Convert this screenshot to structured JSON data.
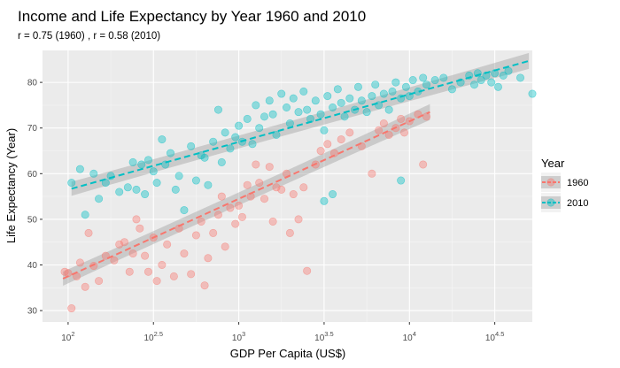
{
  "chart_data": {
    "type": "scatter",
    "title": "Income and Life Expectancy by Year 1960 and 2010",
    "subtitle": "r =  0.75 (1960) , r =  0.58 (2010)",
    "xlabel": "GDP Per Capita (US$)",
    "ylabel": "Life Expectancy (Year)",
    "x_scale": "log10",
    "x_log10_range": [
      1.85,
      4.72
    ],
    "ylim": [
      27.5,
      87
    ],
    "x_ticks": [
      {
        "log10": 2.0,
        "base": "10",
        "exp": "2"
      },
      {
        "log10": 2.5,
        "base": "10",
        "exp": "2.5"
      },
      {
        "log10": 3.0,
        "base": "10",
        "exp": "3"
      },
      {
        "log10": 3.5,
        "base": "10",
        "exp": "3.5"
      },
      {
        "log10": 4.0,
        "base": "10",
        "exp": "4"
      },
      {
        "log10": 4.5,
        "base": "10",
        "exp": "4.5"
      }
    ],
    "y_ticks": [
      30,
      40,
      50,
      60,
      70,
      80
    ],
    "grid": true,
    "legend": {
      "title": "Year",
      "position": "right"
    },
    "series": [
      {
        "name": "1960",
        "color": "#F8766D",
        "fit": {
          "log10_x": [
            1.97,
            4.12
          ],
          "y": [
            37.0,
            73.5
          ]
        },
        "points": [
          [
            1.98,
            38.5
          ],
          [
            2.0,
            38.2
          ],
          [
            2.02,
            30.5
          ],
          [
            2.05,
            37.5
          ],
          [
            2.07,
            40.5
          ],
          [
            2.1,
            35.2
          ],
          [
            2.12,
            47.0
          ],
          [
            2.15,
            39.8
          ],
          [
            2.18,
            36.5
          ],
          [
            2.22,
            42.0
          ],
          [
            2.27,
            41.0
          ],
          [
            2.3,
            44.5
          ],
          [
            2.33,
            45.0
          ],
          [
            2.36,
            38.5
          ],
          [
            2.38,
            42.5
          ],
          [
            2.4,
            50.0
          ],
          [
            2.42,
            48.0
          ],
          [
            2.45,
            42.0
          ],
          [
            2.47,
            38.5
          ],
          [
            2.5,
            46.0
          ],
          [
            2.52,
            36.5
          ],
          [
            2.55,
            40.0
          ],
          [
            2.58,
            44.5
          ],
          [
            2.62,
            37.5
          ],
          [
            2.65,
            48.0
          ],
          [
            2.68,
            42.5
          ],
          [
            2.72,
            38.0
          ],
          [
            2.75,
            46.5
          ],
          [
            2.78,
            49.5
          ],
          [
            2.8,
            35.5
          ],
          [
            2.82,
            41.5
          ],
          [
            2.85,
            47.0
          ],
          [
            2.88,
            51.0
          ],
          [
            2.9,
            55.0
          ],
          [
            2.92,
            44.0
          ],
          [
            2.95,
            52.5
          ],
          [
            2.98,
            49.0
          ],
          [
            3.0,
            53.0
          ],
          [
            3.02,
            50.5
          ],
          [
            3.05,
            57.5
          ],
          [
            3.07,
            55.0
          ],
          [
            3.1,
            62.0
          ],
          [
            3.12,
            58.0
          ],
          [
            3.15,
            54.5
          ],
          [
            3.18,
            61.5
          ],
          [
            3.2,
            49.5
          ],
          [
            3.22,
            57.0
          ],
          [
            3.25,
            56.5
          ],
          [
            3.28,
            60.0
          ],
          [
            3.3,
            47.0
          ],
          [
            3.32,
            55.5
          ],
          [
            3.35,
            50.0
          ],
          [
            3.38,
            57.0
          ],
          [
            3.4,
            38.7
          ],
          [
            3.45,
            62.0
          ],
          [
            3.48,
            65.0
          ],
          [
            3.52,
            66.5
          ],
          [
            3.56,
            64.5
          ],
          [
            3.6,
            67.5
          ],
          [
            3.65,
            69.0
          ],
          [
            3.72,
            66.0
          ],
          [
            3.78,
            60.0
          ],
          [
            3.82,
            69.5
          ],
          [
            3.85,
            71.0
          ],
          [
            3.88,
            68.5
          ],
          [
            3.92,
            70.0
          ],
          [
            3.95,
            72.0
          ],
          [
            3.97,
            69.0
          ],
          [
            4.0,
            71.5
          ],
          [
            4.05,
            73.0
          ],
          [
            4.1,
            72.5
          ],
          [
            4.08,
            62.0
          ]
        ]
      },
      {
        "name": "2010",
        "color": "#00BFC4",
        "fit": {
          "log10_x": [
            2.02,
            4.7
          ],
          "y": [
            56.7,
            84.7
          ]
        },
        "points": [
          [
            2.02,
            58.0
          ],
          [
            2.07,
            61.0
          ],
          [
            2.1,
            51.0
          ],
          [
            2.15,
            60.0
          ],
          [
            2.18,
            54.5
          ],
          [
            2.22,
            58.0
          ],
          [
            2.25,
            59.5
          ],
          [
            2.3,
            56.0
          ],
          [
            2.35,
            57.0
          ],
          [
            2.38,
            62.5
          ],
          [
            2.4,
            56.5
          ],
          [
            2.43,
            62.0
          ],
          [
            2.45,
            55.5
          ],
          [
            2.47,
            63.0
          ],
          [
            2.5,
            60.5
          ],
          [
            2.52,
            58.0
          ],
          [
            2.55,
            67.5
          ],
          [
            2.57,
            62.0
          ],
          [
            2.6,
            64.5
          ],
          [
            2.63,
            56.5
          ],
          [
            2.65,
            59.5
          ],
          [
            2.68,
            52.0
          ],
          [
            2.72,
            66.0
          ],
          [
            2.75,
            58.5
          ],
          [
            2.78,
            64.0
          ],
          [
            2.8,
            63.5
          ],
          [
            2.82,
            57.5
          ],
          [
            2.85,
            67.0
          ],
          [
            2.88,
            74.0
          ],
          [
            2.9,
            62.5
          ],
          [
            2.92,
            69.0
          ],
          [
            2.95,
            65.5
          ],
          [
            2.98,
            68.0
          ],
          [
            3.0,
            70.5
          ],
          [
            3.02,
            67.0
          ],
          [
            3.05,
            72.0
          ],
          [
            3.08,
            66.5
          ],
          [
            3.1,
            75.0
          ],
          [
            3.12,
            70.0
          ],
          [
            3.15,
            72.5
          ],
          [
            3.18,
            76.0
          ],
          [
            3.2,
            73.0
          ],
          [
            3.22,
            68.5
          ],
          [
            3.25,
            77.5
          ],
          [
            3.28,
            74.5
          ],
          [
            3.3,
            71.0
          ],
          [
            3.32,
            76.5
          ],
          [
            3.35,
            73.5
          ],
          [
            3.38,
            78.0
          ],
          [
            3.4,
            74.0
          ],
          [
            3.42,
            72.0
          ],
          [
            3.45,
            76.0
          ],
          [
            3.48,
            73.0
          ],
          [
            3.5,
            69.5
          ],
          [
            3.52,
            77.0
          ],
          [
            3.55,
            74.5
          ],
          [
            3.58,
            78.5
          ],
          [
            3.6,
            75.5
          ],
          [
            3.62,
            72.5
          ],
          [
            3.65,
            76.5
          ],
          [
            3.68,
            74.0
          ],
          [
            3.7,
            79.0
          ],
          [
            3.72,
            76.0
          ],
          [
            3.75,
            73.5
          ],
          [
            3.78,
            77.0
          ],
          [
            3.8,
            79.5
          ],
          [
            3.82,
            75.0
          ],
          [
            3.85,
            77.5
          ],
          [
            3.88,
            74.0
          ],
          [
            3.9,
            78.0
          ],
          [
            3.92,
            80.0
          ],
          [
            3.95,
            76.5
          ],
          [
            3.98,
            79.0
          ],
          [
            4.0,
            77.0
          ],
          [
            4.02,
            80.5
          ],
          [
            4.05,
            78.0
          ],
          [
            4.08,
            81.0
          ],
          [
            4.1,
            79.5
          ],
          [
            4.15,
            80.5
          ],
          [
            4.2,
            81.0
          ],
          [
            4.25,
            78.5
          ],
          [
            4.3,
            80.0
          ],
          [
            4.35,
            81.5
          ],
          [
            4.38,
            79.5
          ],
          [
            4.4,
            82.0
          ],
          [
            4.42,
            80.5
          ],
          [
            4.45,
            81.5
          ],
          [
            4.48,
            80.0
          ],
          [
            4.5,
            82.0
          ],
          [
            4.52,
            79.0
          ],
          [
            4.55,
            81.5
          ],
          [
            4.58,
            82.5
          ],
          [
            4.65,
            81.0
          ],
          [
            4.72,
            77.5
          ],
          [
            3.95,
            58.5
          ],
          [
            3.55,
            55.5
          ],
          [
            3.5,
            54.0
          ]
        ]
      }
    ]
  }
}
